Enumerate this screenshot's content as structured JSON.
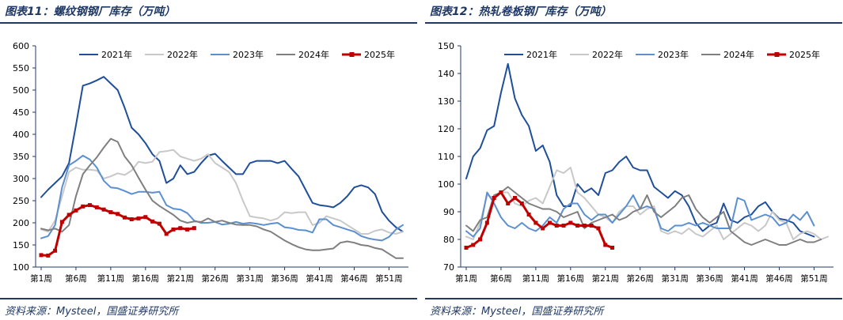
{
  "left": {
    "title": "图表11：螺纹钢钢厂库存（万吨）",
    "source": "资料来源：Mysteel，国盛证券研究所"
  },
  "right": {
    "title": "图表12：热轧卷板钢厂库存（万吨）",
    "source": "资料来源：Mysteel，国盛证券研究所"
  },
  "colors": {
    "2021年": "#1f4e9a",
    "2022年": "#c8c8c8",
    "2023年": "#5b8fd0",
    "2024年": "#7f7f7f",
    "2025年": "#c00000",
    "frame": "#1f3864"
  },
  "chart_data": [
    {
      "type": "line",
      "title": "",
      "xlabel": "",
      "ylabel": "",
      "ylim": [
        100,
        600
      ],
      "yticks": [
        100,
        150,
        200,
        250,
        300,
        350,
        400,
        450,
        500,
        550,
        600
      ],
      "xticks": [
        "第1周",
        "第6周",
        "第11周",
        "第16周",
        "第21周",
        "第26周",
        "第31周",
        "第36周",
        "第41周",
        "第46周",
        "第51周"
      ],
      "legend_position": "top",
      "grid": false,
      "series": [
        {
          "name": "2021年",
          "values": [
            258,
            275,
            290,
            305,
            335,
            420,
            510,
            515,
            522,
            530,
            515,
            500,
            460,
            415,
            400,
            380,
            355,
            340,
            290,
            300,
            330,
            310,
            315,
            335,
            352,
            356,
            340,
            325,
            310,
            310,
            335,
            340,
            340,
            340,
            335,
            340,
            322,
            305,
            275,
            245,
            240,
            238,
            235,
            245,
            260,
            280,
            285,
            280,
            265,
            225,
            205,
            190,
            180
          ]
        },
        {
          "name": "2022年",
          "values": [
            185,
            180,
            205,
            260,
            315,
            325,
            320,
            320,
            318,
            300,
            305,
            312,
            308,
            318,
            338,
            335,
            338,
            360,
            362,
            365,
            350,
            345,
            340,
            345,
            355,
            335,
            325,
            315,
            290,
            250,
            215,
            212,
            210,
            205,
            210,
            224,
            222,
            224,
            224,
            195,
            200,
            215,
            210,
            205,
            195,
            185,
            175,
            175,
            182,
            185,
            178,
            175,
            180
          ]
        },
        {
          "name": "2023年",
          "values": [
            165,
            170,
            195,
            280,
            330,
            340,
            352,
            343,
            325,
            295,
            280,
            278,
            272,
            265,
            270,
            270,
            268,
            270,
            240,
            232,
            230,
            222,
            205,
            200,
            200,
            202,
            196,
            198,
            202,
            198,
            200,
            198,
            195,
            198,
            200,
            190,
            188,
            184,
            183,
            178,
            208,
            208,
            195,
            190,
            185,
            180,
            170,
            165,
            162,
            160,
            168,
            185,
            195
          ]
        },
        {
          "name": "2024年",
          "values": [
            187,
            183,
            187,
            180,
            195,
            260,
            310,
            330,
            348,
            370,
            390,
            383,
            350,
            330,
            302,
            275,
            250,
            238,
            228,
            218,
            205,
            200,
            203,
            202,
            210,
            202,
            205,
            200,
            196,
            195,
            195,
            192,
            185,
            180,
            170,
            160,
            152,
            145,
            140,
            138,
            138,
            140,
            142,
            155,
            158,
            155,
            150,
            148,
            143,
            140,
            130,
            120,
            120
          ]
        },
        {
          "name": "2025年",
          "values": [
            127,
            126,
            137,
            202,
            218,
            228,
            237,
            240,
            235,
            230,
            224,
            220,
            212,
            208,
            210,
            213,
            203,
            198,
            175,
            185,
            188,
            185,
            188
          ]
        }
      ]
    },
    {
      "type": "line",
      "title": "",
      "xlabel": "",
      "ylabel": "",
      "ylim": [
        70,
        150
      ],
      "yticks": [
        70,
        80,
        90,
        100,
        110,
        120,
        130,
        140,
        150
      ],
      "xticks": [
        "第1周",
        "第6周",
        "第11周",
        "第16周",
        "第21周",
        "第26周",
        "第31周",
        "第36周",
        "第41周",
        "第46周",
        "第51周"
      ],
      "legend_position": "top",
      "grid": false,
      "series": [
        {
          "name": "2021年",
          "values": [
            102,
            110,
            113,
            119.5,
            121,
            133,
            143.5,
            131,
            125,
            121,
            112,
            114,
            108,
            96,
            92,
            92,
            100,
            97,
            98.5,
            96,
            104,
            105,
            108,
            110,
            106,
            105,
            105,
            99,
            97,
            95,
            97.5,
            96,
            92,
            86,
            83,
            85,
            86,
            93,
            87,
            86,
            88,
            89,
            92,
            93.5,
            90,
            87.5,
            87,
            86,
            83,
            82,
            81
          ]
        },
        {
          "name": "2022年",
          "values": [
            81,
            80,
            86,
            96,
            95,
            97,
            97,
            93,
            92,
            94,
            95,
            93,
            99,
            105,
            104,
            106,
            97,
            95,
            92,
            89,
            88,
            86,
            90,
            92,
            92,
            89,
            91,
            92,
            83,
            82,
            83,
            82,
            84,
            82,
            81,
            83,
            85,
            80,
            82,
            84,
            86,
            85,
            83,
            85,
            90,
            87,
            86,
            80,
            82,
            83,
            82,
            80,
            81
          ]
        },
        {
          "name": "2023年",
          "values": [
            83,
            81,
            84,
            97,
            93,
            88,
            85,
            84,
            86,
            84,
            83,
            85,
            88,
            86,
            91,
            93,
            93,
            89,
            87,
            89,
            89,
            86,
            89,
            92,
            96,
            91,
            92,
            91,
            84,
            83,
            85,
            85,
            86,
            85,
            86,
            85,
            84,
            84,
            84,
            95,
            94,
            87,
            88,
            89,
            88,
            85,
            86,
            89,
            87,
            90,
            85
          ]
        },
        {
          "name": "2024年",
          "values": [
            85,
            83,
            87,
            88,
            96,
            97,
            99,
            97,
            95,
            93,
            92,
            91,
            91,
            90,
            88,
            89,
            90,
            84,
            86,
            87,
            88,
            89,
            87,
            88,
            90,
            91,
            96,
            90,
            88,
            90,
            92,
            95,
            96,
            91,
            88,
            86,
            88,
            90,
            83,
            81,
            79,
            78,
            79,
            80,
            79,
            78,
            78,
            79,
            80,
            79,
            79,
            80
          ]
        },
        {
          "name": "2025年",
          "values": [
            77,
            78,
            80,
            86,
            95,
            97,
            93,
            95,
            93,
            89,
            86,
            84,
            86,
            85,
            85,
            86,
            85,
            85,
            85,
            84,
            78,
            77
          ]
        }
      ]
    }
  ]
}
